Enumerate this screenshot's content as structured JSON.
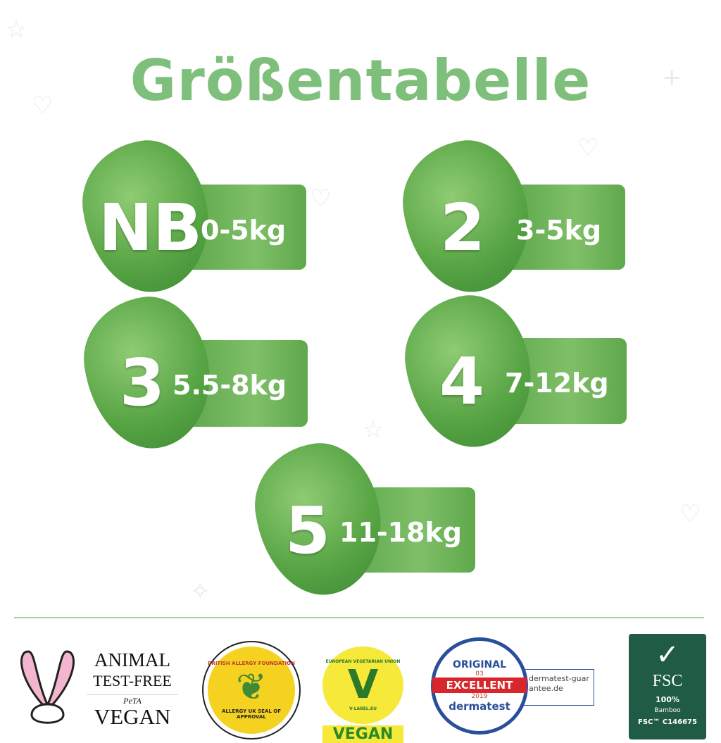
{
  "title": "Größentabelle",
  "sizes": [
    {
      "size": "NB",
      "range": "0-5kg"
    },
    {
      "size": "2",
      "range": "3-5kg"
    },
    {
      "size": "3",
      "range": "5.5-8kg"
    },
    {
      "size": "4",
      "range": "7-12kg"
    },
    {
      "size": "5",
      "range": "11-18kg"
    }
  ],
  "logos": {
    "peta": {
      "line1": "ANIMAL",
      "line2": "TEST-FREE",
      "brand": "PeTA",
      "line3": "VEGAN"
    },
    "allergy": {
      "top": "BRITISH ALLERGY FOUNDATION",
      "bottom": "ALLERGY UK SEAL OF APPROVAL"
    },
    "vlabel": {
      "top": "EUROPEAN VEGETARIAN UNION",
      "bottom": "V-LABEL.EU",
      "badge": "VEGAN"
    },
    "dermatest": {
      "top": "ORIGINAL",
      "num": "03",
      "rating": "EXCELLENT",
      "year": "2019",
      "brand": "dermatest",
      "site": "dermatest-guarantee.de"
    },
    "fsc": {
      "name": "FSC",
      "percent": "100%",
      "material": "Bamboo",
      "code": "FSC™ C146675"
    }
  },
  "colors": {
    "title": "#7fbf7c",
    "green": "#5aa548",
    "fsc": "#1f5b45"
  }
}
